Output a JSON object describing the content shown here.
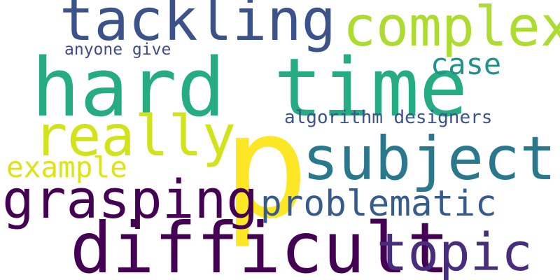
{
  "word_cloud": {
    "background": "#ffffff",
    "words": [
      {
        "id": "p",
        "text": "p",
        "color": "#fde725"
      },
      {
        "id": "hard-time",
        "text": "hard time",
        "color": "#25ac82"
      },
      {
        "id": "difficult",
        "text": "difficult",
        "color": "#440154"
      },
      {
        "id": "subject",
        "text": "subject",
        "color": "#2a788e"
      },
      {
        "id": "tackling",
        "text": "tackling",
        "color": "#3b528b"
      },
      {
        "id": "really",
        "text": "really",
        "color": "#d2e21b"
      },
      {
        "id": "complex",
        "text": "complex",
        "color": "#addc30"
      },
      {
        "id": "grasping",
        "text": "grasping",
        "color": "#440154"
      },
      {
        "id": "topic",
        "text": "topic",
        "color": "#472d7b"
      },
      {
        "id": "problematic",
        "text": "problematic",
        "color": "#365c8d"
      },
      {
        "id": "case",
        "text": "case",
        "color": "#21918c"
      },
      {
        "id": "example",
        "text": "example",
        "color": "#dde318"
      },
      {
        "id": "algorithm-designers",
        "text": "algorithm designers",
        "color": "#3b528b"
      },
      {
        "id": "anyone-give",
        "text": "anyone give",
        "color": "#3e4a89"
      }
    ]
  }
}
